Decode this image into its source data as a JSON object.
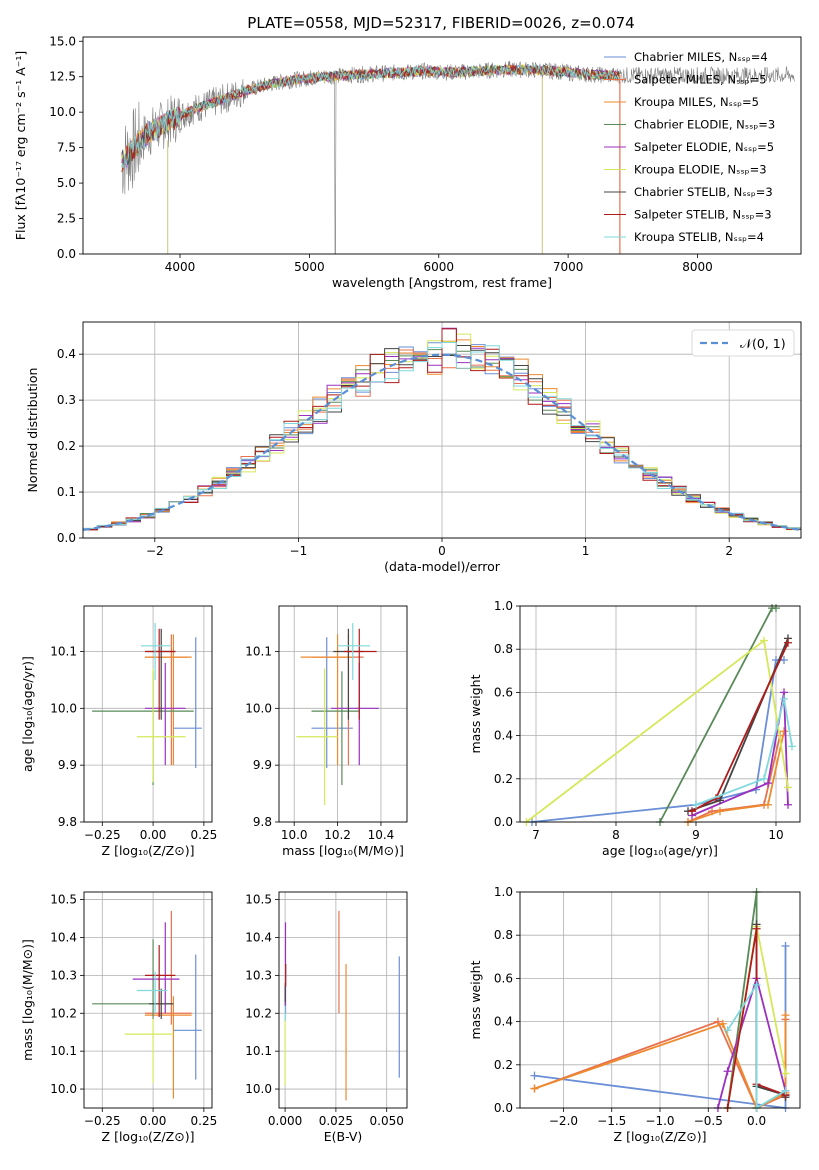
{
  "figure": {
    "title": "PLATE=0558, MJD=52317, FIBERID=0026, z=0.074"
  },
  "legend_entries": [
    {
      "label": "Chabrier MILES, Nₛₛₚ=4",
      "color": "#6a8fd6"
    },
    {
      "label": "Salpeter MILES, Nₛₛₚ=5",
      "color": "#e8724f"
    },
    {
      "label": "Kroupa MILES, Nₛₛₚ=5",
      "color": "#ee8a2e"
    },
    {
      "label": "Chabrier ELODIE, Nₛₛₚ=3",
      "color": "#5a8a5a"
    },
    {
      "label": "Salpeter ELODIE, Nₛₛₚ=5",
      "color": "#9b30c0"
    },
    {
      "label": "Kroupa ELODIE, Nₛₛₚ=3",
      "color": "#d6e85a"
    },
    {
      "label": "Chabrier STELIB, Nₛₛₚ=3",
      "color": "#444444"
    },
    {
      "label": "Salpeter STELIB, Nₛₛₚ=3",
      "color": "#b01c1c"
    },
    {
      "label": "Kroupa STELIB, Nₛₛₚ=4",
      "color": "#7fd8dc"
    }
  ],
  "chart_data": [
    {
      "id": "spectrum",
      "type": "line",
      "title": "PLATE=0558, MJD=52317, FIBERID=0026, z=0.074",
      "xlabel": "wavelength [Angstrom, rest frame]",
      "ylabel": "Flux [fλ10⁻¹⁷ erg cm⁻² s⁻¹ A⁻¹]",
      "xlim": [
        3250,
        8800
      ],
      "ylim": [
        0,
        15.3
      ],
      "xticks": [
        4000,
        5000,
        6000,
        7000,
        8000
      ],
      "yticks": [
        0.0,
        2.5,
        5.0,
        7.5,
        10.0,
        12.5,
        15.0
      ],
      "grid": false,
      "legend": "upper-right",
      "data_envelope": {
        "x": [
          3550,
          3650,
          3750,
          3850,
          3950,
          4100,
          4300,
          4500,
          4700,
          4900,
          5100,
          5300,
          5500,
          5700,
          5900,
          6100,
          6300,
          6500,
          6700,
          6900,
          7100,
          7300,
          7500
        ],
        "y": [
          6.5,
          7.5,
          8.5,
          9.0,
          9.5,
          10.2,
          10.8,
          11.5,
          12.0,
          12.3,
          12.5,
          12.6,
          12.7,
          12.8,
          12.9,
          12.8,
          12.9,
          13.0,
          13.0,
          12.9,
          12.7,
          12.6,
          12.6
        ]
      },
      "model_range_x": [
        3550,
        7400
      ]
    },
    {
      "id": "residuals",
      "type": "histogram",
      "xlabel": "(data-model)/error",
      "ylabel": "Normed distribution",
      "xlim": [
        -2.5,
        2.5
      ],
      "ylim": [
        0,
        0.47
      ],
      "xticks": [
        -2,
        -1,
        0,
        1,
        2
      ],
      "yticks": [
        0.0,
        0.1,
        0.2,
        0.3,
        0.4
      ],
      "grid": true,
      "legend": "upper-right",
      "reference_label": "𝒩(0, 1)",
      "bin_width": 0.1
    },
    {
      "id": "age-vs-Z",
      "type": "errorbar",
      "xlabel": "Z [log₁₀(Z/Z⊙)]",
      "ylabel": "age  [log₁₀(age/yr)]",
      "xlim": [
        -0.34,
        0.29
      ],
      "ylim": [
        9.8,
        10.18
      ],
      "xticks": [
        -0.25,
        0.0,
        0.25
      ],
      "yticks": [
        9.8,
        9.9,
        10.0,
        10.1
      ],
      "grid": true,
      "points": [
        {
          "x": 0.21,
          "y": 9.965,
          "xerr": [
            0.11,
            0.03
          ],
          "yerr": [
            0.07,
            0.16
          ],
          "color": "#6a8fd6"
        },
        {
          "x": 0.09,
          "y": 10.09,
          "xerr": [
            0.13,
            0.08
          ],
          "yerr": [
            0.19,
            0.04
          ],
          "color": "#e8724f"
        },
        {
          "x": 0.1,
          "y": 10.09,
          "xerr": [
            0.14,
            0.09
          ],
          "yerr": [
            0.19,
            0.04
          ],
          "color": "#ee8a2e"
        },
        {
          "x": 0.0,
          "y": 9.995,
          "xerr": [
            0.3,
            0.2
          ],
          "yerr": [
            0.13,
            0.07
          ],
          "color": "#5a8a5a"
        },
        {
          "x": 0.06,
          "y": 10.0,
          "xerr": [
            0.1,
            0.1
          ],
          "yerr": [
            0.1,
            0.08
          ],
          "color": "#9b30c0"
        },
        {
          "x": 0.0,
          "y": 9.95,
          "xerr": [
            0.08,
            0.16
          ],
          "yerr": [
            0.08,
            0.12
          ],
          "color": "#d6e85a"
        },
        {
          "x": 0.04,
          "y": 10.1,
          "xerr": [
            0.07,
            0.07
          ],
          "yerr": [
            0.12,
            0.04
          ],
          "color": "#444444"
        },
        {
          "x": 0.03,
          "y": 10.1,
          "xerr": [
            0.07,
            0.08
          ],
          "yerr": [
            0.12,
            0.04
          ],
          "color": "#b01c1c"
        },
        {
          "x": 0.01,
          "y": 10.11,
          "xerr": [
            0.07,
            0.08
          ],
          "yerr": [
            0.06,
            0.04
          ],
          "color": "#7fd8dc"
        }
      ]
    },
    {
      "id": "age-vs-mass",
      "type": "errorbar",
      "xlabel": "mass [log₁₀(M/M⊙)]",
      "ylabel": "",
      "xlim": [
        9.93,
        10.52
      ],
      "ylim": [
        9.8,
        10.18
      ],
      "xticks": [
        10.0,
        10.2,
        10.4
      ],
      "yticks": [
        9.8,
        9.9,
        10.0,
        10.1
      ],
      "grid": true,
      "points": [
        {
          "x": 10.15,
          "y": 9.965,
          "xerr": [
            0.07,
            0.12
          ],
          "yerr": [
            0.07,
            0.16
          ],
          "color": "#6a8fd6"
        },
        {
          "x": 10.25,
          "y": 10.09,
          "xerr": [
            0.17,
            0.07
          ],
          "yerr": [
            0.19,
            0.04
          ],
          "color": "#e8724f"
        },
        {
          "x": 10.2,
          "y": 10.09,
          "xerr": [
            0.17,
            0.07
          ],
          "yerr": [
            0.19,
            0.04
          ],
          "color": "#ee8a2e"
        },
        {
          "x": 10.22,
          "y": 9.995,
          "xerr": [
            0.14,
            0.08
          ],
          "yerr": [
            0.13,
            0.07
          ],
          "color": "#5a8a5a"
        },
        {
          "x": 10.3,
          "y": 10.0,
          "xerr": [
            0.13,
            0.09
          ],
          "yerr": [
            0.1,
            0.08
          ],
          "color": "#9b30c0"
        },
        {
          "x": 10.14,
          "y": 9.95,
          "xerr": [
            0.13,
            0.06
          ],
          "yerr": [
            0.12,
            0.12
          ],
          "color": "#d6e85a"
        },
        {
          "x": 10.25,
          "y": 10.1,
          "xerr": [
            0.07,
            0.07
          ],
          "yerr": [
            0.12,
            0.04
          ],
          "color": "#444444"
        },
        {
          "x": 10.3,
          "y": 10.1,
          "xerr": [
            0.07,
            0.08
          ],
          "yerr": [
            0.12,
            0.04
          ],
          "color": "#b01c1c"
        },
        {
          "x": 10.27,
          "y": 10.11,
          "xerr": [
            0.07,
            0.08
          ],
          "yerr": [
            0.06,
            0.04
          ],
          "color": "#7fd8dc"
        }
      ]
    },
    {
      "id": "weight-vs-age",
      "type": "line",
      "xlabel": "age  [log₁₀(age/yr)]",
      "ylabel": "mass weight",
      "xlim": [
        6.8,
        10.3
      ],
      "ylim": [
        0,
        1
      ],
      "xticks": [
        7,
        8,
        9,
        10
      ],
      "yticks": [
        0.0,
        0.2,
        0.4,
        0.6,
        0.8,
        1.0
      ],
      "grid": true,
      "series": [
        {
          "color": "#6a8fd6",
          "x": [
            6.95,
            9.0,
            9.75,
            10.0,
            10.1
          ],
          "y": [
            0.0,
            0.08,
            0.15,
            0.75,
            0.75
          ]
        },
        {
          "color": "#e8724f",
          "x": [
            8.9,
            9.2,
            9.85,
            10.05
          ],
          "y": [
            0.0,
            0.05,
            0.08,
            0.4
          ]
        },
        {
          "color": "#ee8a2e",
          "x": [
            8.9,
            9.3,
            9.9,
            10.1
          ],
          "y": [
            0.0,
            0.05,
            0.08,
            0.42
          ]
        },
        {
          "color": "#5a8a5a",
          "x": [
            8.55,
            9.95,
            10.0
          ],
          "y": [
            0.0,
            0.99,
            0.99
          ]
        },
        {
          "color": "#9b30c0",
          "x": [
            8.95,
            9.9,
            10.1,
            10.15
          ],
          "y": [
            0.03,
            0.18,
            0.6,
            0.08
          ]
        },
        {
          "color": "#d6e85a",
          "x": [
            6.88,
            9.85,
            10.15
          ],
          "y": [
            0.0,
            0.84,
            0.16
          ]
        },
        {
          "color": "#444444",
          "x": [
            8.9,
            9.3,
            10.15
          ],
          "y": [
            0.05,
            0.1,
            0.85
          ]
        },
        {
          "color": "#b01c1c",
          "x": [
            8.95,
            9.25,
            10.15
          ],
          "y": [
            0.05,
            0.11,
            0.83
          ]
        },
        {
          "color": "#7fd8dc",
          "x": [
            9.0,
            9.85,
            10.1,
            10.2
          ],
          "y": [
            0.08,
            0.2,
            0.57,
            0.35
          ]
        }
      ]
    },
    {
      "id": "mass-vs-Z",
      "type": "errorbar",
      "xlabel": "Z [log₁₀(Z/Z⊙)]",
      "ylabel": "mass [log₁₀(M/M⊙)]",
      "xlim": [
        -0.34,
        0.29
      ],
      "ylim": [
        9.95,
        10.52
      ],
      "xticks": [
        -0.25,
        0.0,
        0.25
      ],
      "yticks": [
        10.0,
        10.1,
        10.2,
        10.3,
        10.4,
        10.5
      ],
      "grid": true,
      "points": [
        {
          "x": 0.21,
          "y": 10.155,
          "xerr": [
            0.11,
            0.03
          ],
          "yerr": [
            0.13,
            0.2
          ],
          "color": "#6a8fd6"
        },
        {
          "x": 0.09,
          "y": 10.2,
          "xerr": [
            0.13,
            0.1
          ],
          "yerr": [
            0.03,
            0.27
          ],
          "color": "#e8724f"
        },
        {
          "x": 0.1,
          "y": 10.195,
          "xerr": [
            0.14,
            0.09
          ],
          "yerr": [
            0.22,
            0.05
          ],
          "color": "#ee8a2e"
        },
        {
          "x": 0.0,
          "y": 10.225,
          "xerr": [
            0.3,
            0.1
          ],
          "yerr": [
            0.04,
            0.17
          ],
          "color": "#5a8a5a"
        },
        {
          "x": 0.06,
          "y": 10.29,
          "xerr": [
            0.16,
            0.07
          ],
          "yerr": [
            0.09,
            0.15
          ],
          "color": "#9b30c0"
        },
        {
          "x": 0.0,
          "y": 10.145,
          "xerr": [
            0.14,
            0.1
          ],
          "yerr": [
            0.13,
            0.04
          ],
          "color": "#d6e85a"
        },
        {
          "x": 0.04,
          "y": 10.225,
          "xerr": [
            0.06,
            0.06
          ],
          "yerr": [
            0.04,
            0.04
          ],
          "color": "#444444"
        },
        {
          "x": 0.03,
          "y": 10.3,
          "xerr": [
            0.07,
            0.08
          ],
          "yerr": [
            0.11,
            0.08
          ],
          "color": "#b01c1c"
        },
        {
          "x": 0.01,
          "y": 10.26,
          "xerr": [
            0.09,
            0.06
          ],
          "yerr": [
            0.06,
            0.05
          ],
          "color": "#7fd8dc"
        }
      ]
    },
    {
      "id": "mass-vs-EBV",
      "type": "errorbar",
      "xlabel": "E(B-V)",
      "ylabel": "",
      "xlim": [
        -0.003,
        0.06
      ],
      "ylim": [
        9.95,
        10.52
      ],
      "xticks": [
        0.0,
        0.025,
        0.05
      ],
      "xtick_labels": [
        "0.000",
        "0.025",
        "0.050"
      ],
      "yticks": [
        10.0,
        10.1,
        10.2,
        10.3,
        10.4,
        10.5
      ],
      "grid": true,
      "points": [
        {
          "x": 0.0562,
          "y": 10.19,
          "xerr": [
            0,
            0
          ],
          "yerr": [
            0.16,
            0.16
          ],
          "color": "#6a8fd6"
        },
        {
          "x": 0.0265,
          "y": 10.3,
          "xerr": [
            0,
            0
          ],
          "yerr": [
            0.1,
            0.17
          ],
          "color": "#e8724f"
        },
        {
          "x": 0.03,
          "y": 10.15,
          "xerr": [
            0,
            0
          ],
          "yerr": [
            0.18,
            0.18
          ],
          "color": "#ee8a2e"
        },
        {
          "x": 0.0,
          "y": 10.23,
          "xerr": [
            0,
            0
          ],
          "yerr": [
            0.05,
            0.05
          ],
          "color": "#5a8a5a"
        },
        {
          "x": 0.0002,
          "y": 10.3,
          "xerr": [
            0,
            0
          ],
          "yerr": [
            0.1,
            0.14
          ],
          "color": "#9b30c0"
        },
        {
          "x": 0.0,
          "y": 10.1,
          "xerr": [
            0,
            0
          ],
          "yerr": [
            0.09,
            0.09
          ],
          "color": "#d6e85a"
        },
        {
          "x": 0.0,
          "y": 10.25,
          "xerr": [
            0,
            0
          ],
          "yerr": [
            0.02,
            0.02
          ],
          "color": "#444444"
        },
        {
          "x": 0.0003,
          "y": 10.3,
          "xerr": [
            0,
            0
          ],
          "yerr": [
            0.03,
            0.03
          ],
          "color": "#b01c1c"
        },
        {
          "x": 0.0,
          "y": 10.2,
          "xerr": [
            0,
            0
          ],
          "yerr": [
            0.02,
            0.02
          ],
          "color": "#7fd8dc"
        }
      ]
    },
    {
      "id": "weight-vs-Z",
      "type": "line",
      "xlabel": "Z [log₁₀(Z/Z⊙)]",
      "ylabel": "mass weight",
      "xlim": [
        -2.45,
        0.45
      ],
      "ylim": [
        0,
        1
      ],
      "xticks": [
        -2.0,
        -1.5,
        -1.0,
        -0.5,
        0.0
      ],
      "yticks": [
        0.0,
        0.2,
        0.4,
        0.6,
        0.8,
        1.0
      ],
      "grid": true,
      "series": [
        {
          "color": "#6a8fd6",
          "x": [
            -2.3,
            0.3,
            0.3,
            0.3
          ],
          "y": [
            0.15,
            0.0,
            0.06,
            0.75
          ]
        },
        {
          "color": "#e8724f",
          "x": [
            -2.3,
            -0.4,
            0.0,
            0.3,
            0.3
          ],
          "y": [
            0.09,
            0.4,
            0.0,
            0.06,
            0.41
          ]
        },
        {
          "color": "#ee8a2e",
          "x": [
            -2.3,
            -0.35,
            0.0,
            0.3,
            0.3
          ],
          "y": [
            0.09,
            0.39,
            0.0,
            0.07,
            0.43
          ]
        },
        {
          "color": "#5a8a5a",
          "x": [
            -0.3,
            0.0,
            0.0
          ],
          "y": [
            0.0,
            1.0,
            0.0
          ]
        },
        {
          "color": "#9b30c0",
          "x": [
            -0.4,
            -0.3,
            0.0,
            0.3
          ],
          "y": [
            0.0,
            0.17,
            0.6,
            0.08
          ]
        },
        {
          "color": "#d6e85a",
          "x": [
            -0.3,
            0.0,
            0.3
          ],
          "y": [
            0.0,
            0.84,
            0.16
          ]
        },
        {
          "color": "#444444",
          "x": [
            0.0,
            0.0,
            0.3,
            0.3
          ],
          "y": [
            0.85,
            0.1,
            0.06,
            0.05
          ]
        },
        {
          "color": "#b01c1c",
          "x": [
            -0.3,
            0.0,
            0.0,
            0.3
          ],
          "y": [
            0.0,
            0.83,
            0.11,
            0.06
          ]
        },
        {
          "color": "#7fd8dc",
          "x": [
            -0.3,
            0.0,
            0.0,
            0.3
          ],
          "y": [
            0.36,
            0.57,
            0.0,
            0.08
          ]
        }
      ]
    }
  ]
}
